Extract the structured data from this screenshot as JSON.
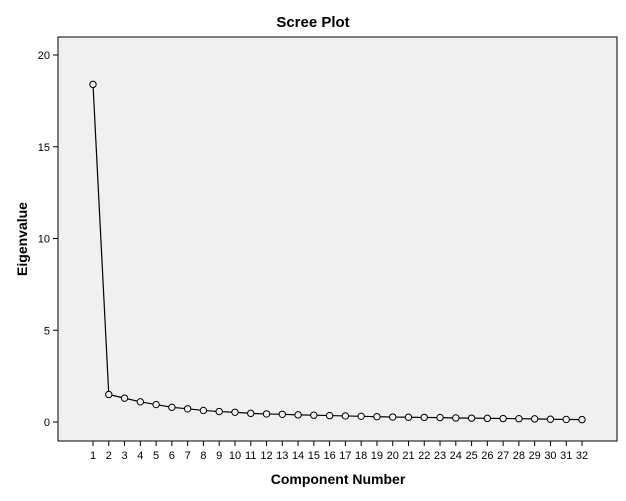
{
  "chart_data": {
    "type": "line",
    "title": "Scree Plot",
    "xlabel": "Component Number",
    "ylabel": "Eigenvalue",
    "ylim": [
      0,
      20
    ],
    "yticks": [
      0,
      5,
      10,
      15,
      20
    ],
    "grid": false,
    "background": "#f0f0f0",
    "line_color": "#000000",
    "marker": "open-circle",
    "x": [
      1,
      2,
      3,
      4,
      5,
      6,
      7,
      8,
      9,
      10,
      11,
      12,
      13,
      14,
      15,
      16,
      17,
      18,
      19,
      20,
      21,
      22,
      23,
      24,
      25,
      26,
      27,
      28,
      29,
      30,
      31,
      32
    ],
    "series": [
      {
        "values": [
          18.4,
          1.5,
          1.3,
          1.1,
          0.95,
          0.8,
          0.72,
          0.63,
          0.57,
          0.53,
          0.47,
          0.44,
          0.42,
          0.39,
          0.37,
          0.35,
          0.33,
          0.31,
          0.29,
          0.27,
          0.26,
          0.25,
          0.24,
          0.22,
          0.21,
          0.2,
          0.19,
          0.18,
          0.17,
          0.15,
          0.14,
          0.13
        ]
      }
    ]
  }
}
